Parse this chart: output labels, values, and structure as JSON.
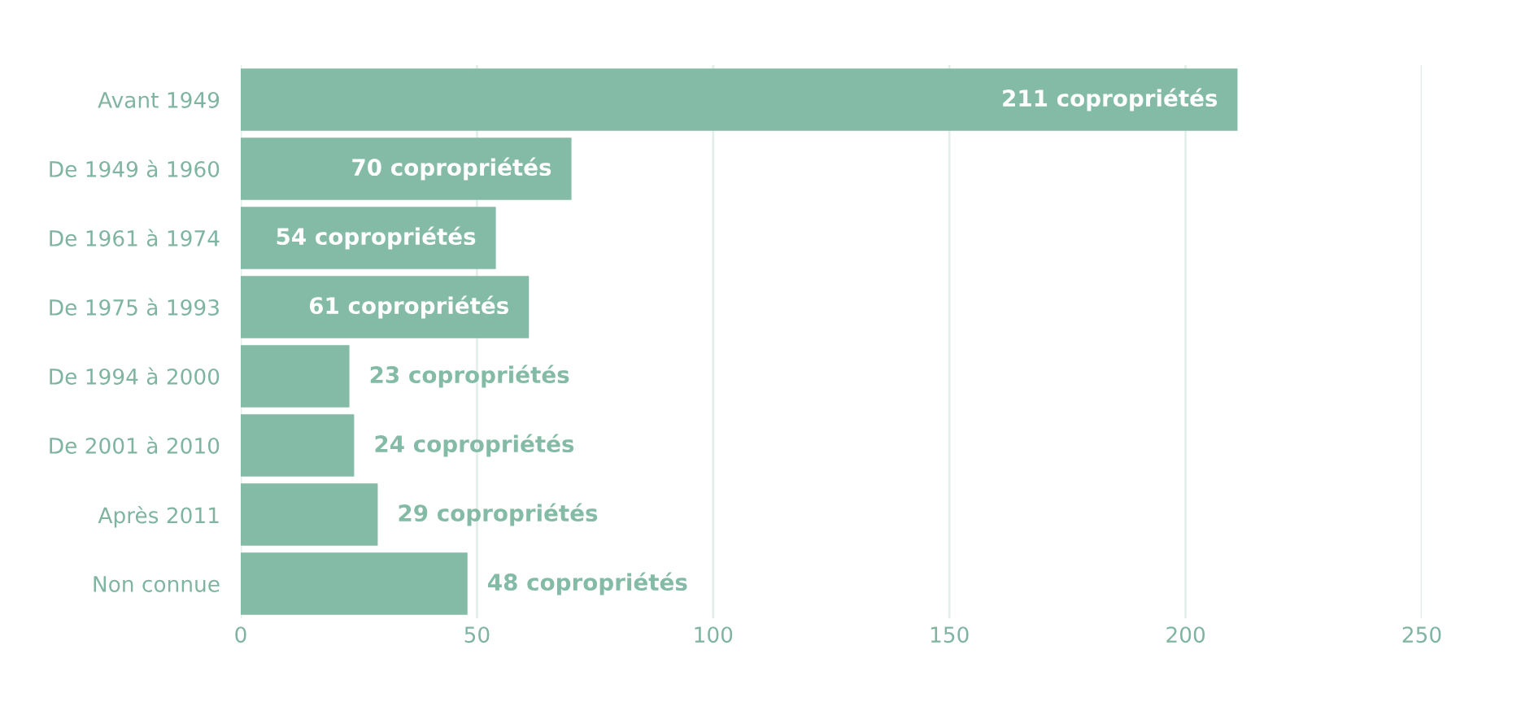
{
  "chart_data": {
    "type": "bar",
    "orientation": "horizontal",
    "categories": [
      "Avant 1949",
      "De 1949 à 1960",
      "De 1961 à 1974",
      "De 1975 à 1993",
      "De 1994 à 2000",
      "De 2001 à 2010",
      "Après 2011",
      "Non connue"
    ],
    "values": [
      211,
      70,
      54,
      61,
      23,
      24,
      29,
      48
    ],
    "value_labels": [
      "211 copropriétés",
      "70 copropriétés",
      "54 copropriétés",
      "61 copropriétés",
      "23 copropriétés",
      "24 copropriétés",
      "29 copropriétés",
      "48 copropriétés"
    ],
    "color": "#84bba6",
    "xlim": [
      0,
      250
    ],
    "xticks": [
      0,
      50,
      100,
      150,
      200,
      250
    ],
    "grid": "x"
  }
}
